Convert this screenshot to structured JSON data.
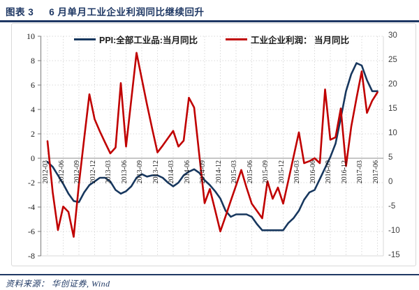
{
  "header": {
    "label": "图表 3",
    "title": "6 月单月工业企业利润同比继续回升"
  },
  "footer": {
    "source": "资料来源： 华创证券, Wind"
  },
  "colors": {
    "accent_navy": "#1f3864",
    "series_ppi": "#17375e",
    "series_profit": "#c00000",
    "grid": "#d9d9d9",
    "axis": "#8c8c8c"
  },
  "chart_data": {
    "type": "line",
    "title": "",
    "legend_position": "top",
    "grid": true,
    "x": [
      "2012-03",
      "2012-04",
      "2012-05",
      "2012-06",
      "2012-07",
      "2012-08",
      "2012-09",
      "2012-10",
      "2012-11",
      "2012-12",
      "2013-01",
      "2013-02",
      "2013-03",
      "2013-04",
      "2013-05",
      "2013-06",
      "2013-07",
      "2013-08",
      "2013-09",
      "2013-10",
      "2013-11",
      "2013-12",
      "2014-01",
      "2014-02",
      "2014-03",
      "2014-04",
      "2014-05",
      "2014-06",
      "2014-07",
      "2014-08",
      "2014-09",
      "2014-10",
      "2014-11",
      "2014-12",
      "2015-01",
      "2015-02",
      "2015-03",
      "2015-04",
      "2015-05",
      "2015-06",
      "2015-07",
      "2015-08",
      "2015-09",
      "2015-10",
      "2015-11",
      "2015-12",
      "2016-01",
      "2016-02",
      "2016-03",
      "2016-04",
      "2016-05",
      "2016-06",
      "2016-07",
      "2016-08",
      "2016-09",
      "2016-10",
      "2016-11",
      "2016-12",
      "2017-01",
      "2017-02",
      "2017-03",
      "2017-04",
      "2017-05",
      "2017-06"
    ],
    "x_tick_labels": [
      "2012-03",
      "2012-06",
      "2012-09",
      "2012-12",
      "2013-03",
      "2013-06",
      "2013-09",
      "2013-12",
      "2014-03",
      "2014-06",
      "2014-09",
      "2014-12",
      "2015-03",
      "2015-06",
      "2015-09",
      "2015-12",
      "2016-03",
      "2016-06",
      "2016-09",
      "2016-12",
      "2017-03",
      "2017-06"
    ],
    "left_axis": {
      "min": -8,
      "max": 10,
      "step": 2,
      "ticks": [
        10,
        8,
        6,
        4,
        2,
        0,
        -2,
        -4,
        -6,
        -8
      ]
    },
    "right_axis": {
      "min": -15,
      "max": 30,
      "step": 5,
      "ticks": [
        30,
        25,
        20,
        15,
        10,
        5,
        0,
        -5,
        -10,
        -15
      ]
    },
    "series": [
      {
        "name": "PPI:全部工业品:当月同比",
        "axis": "left",
        "color": "#17375e",
        "values": [
          -0.3,
          -0.7,
          -1.4,
          -2.1,
          -2.9,
          -3.5,
          -3.6,
          -2.8,
          -2.2,
          -1.9,
          -1.6,
          -1.6,
          -1.9,
          -2.6,
          -2.9,
          -2.7,
          -2.3,
          -1.6,
          -1.3,
          -1.5,
          -1.4,
          -1.4,
          -1.6,
          -2.0,
          -2.3,
          -2.0,
          -1.4,
          -1.1,
          -0.9,
          -1.2,
          -1.8,
          -2.2,
          -2.7,
          -3.3,
          -4.3,
          -4.8,
          -4.6,
          -4.6,
          -4.6,
          -4.8,
          -5.4,
          -5.9,
          -5.9,
          -5.9,
          -5.9,
          -5.9,
          -5.3,
          -4.9,
          -4.3,
          -3.4,
          -2.8,
          -2.6,
          -1.7,
          -0.8,
          0.1,
          1.2,
          3.3,
          5.5,
          6.9,
          7.8,
          7.6,
          6.4,
          5.5,
          5.5
        ]
      },
      {
        "name": "工业企业利润： 当月同比",
        "axis": "right",
        "color": "#c00000",
        "values": [
          8.5,
          -2.0,
          -9.7,
          -4.9,
          -6.0,
          -11.1,
          -0.3,
          9.0,
          18.1,
          13.0,
          10.5,
          8.2,
          6.0,
          7.2,
          20.4,
          7.4,
          17.0,
          26.6,
          21.3,
          16.0,
          11.0,
          6.2,
          7.6,
          9.1,
          10.6,
          7.4,
          8.6,
          17.4,
          15.4,
          5.5,
          -4.2,
          -1.3,
          -5.6,
          -10.0,
          -6.9,
          -3.7,
          -0.6,
          2.6,
          -1.0,
          -4.3,
          -5.8,
          -7.3,
          0.3,
          -3.3,
          -1.0,
          -4.3,
          0.5,
          5.4,
          10.3,
          4.0,
          4.4,
          5.0,
          4.0,
          19.1,
          8.8,
          9.3,
          15.2,
          3.4,
          11.5,
          17.3,
          22.8,
          14.3,
          16.8,
          18.5
        ]
      }
    ]
  }
}
